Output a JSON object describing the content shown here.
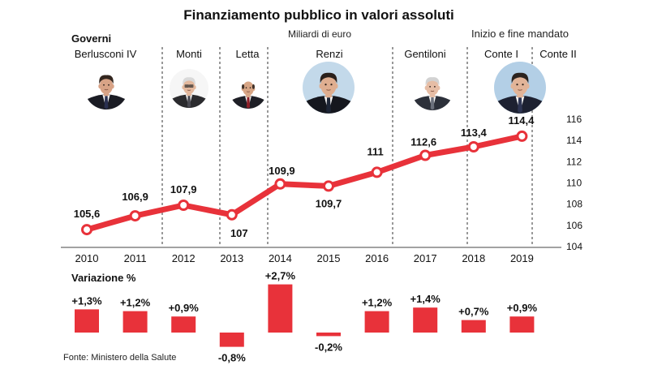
{
  "governments": {
    "label": "Governi",
    "note": "Inizio e fine mandato",
    "items": [
      {
        "name": "Berlusconi IV",
        "portrait": "person-photo-icon"
      },
      {
        "name": "Monti",
        "portrait": "person-photo-icon"
      },
      {
        "name": "Letta",
        "portrait": "person-photo-icon"
      },
      {
        "name": "Renzi",
        "portrait": "person-photo-icon"
      },
      {
        "name": "Gentiloni",
        "portrait": "person-photo-icon"
      },
      {
        "name": "Conte I",
        "portrait": "person-photo-icon"
      },
      {
        "name": "Conte II"
      }
    ]
  },
  "source": "Fonte: Ministero della Salute",
  "colors": {
    "accent": "#e8323a",
    "text": "#111111",
    "marker_fill": "#ffffff"
  },
  "chart_data": [
    {
      "type": "line",
      "title": "Finanziamento pubblico in valori assoluti",
      "unit": "Miliardi di euro",
      "x": [
        2010,
        2011,
        2012,
        2013,
        2014,
        2015,
        2016,
        2017,
        2018,
        2019
      ],
      "values": [
        105.6,
        106.9,
        107.9,
        107,
        109.9,
        109.7,
        111,
        112.6,
        113.4,
        114.4
      ],
      "value_labels": [
        "105,6",
        "106,9",
        "107,9",
        "107",
        "109,9",
        "109,7",
        "111",
        "112,6",
        "113,4",
        "114,4"
      ],
      "ylim": [
        104,
        116
      ],
      "yticks": [
        104,
        106,
        108,
        110,
        112,
        114,
        116
      ],
      "grid": false
    },
    {
      "type": "bar",
      "title": "Variazione %",
      "categories": [
        2010,
        2011,
        2012,
        2013,
        2014,
        2015,
        2016,
        2017,
        2018,
        2019
      ],
      "values": [
        1.3,
        1.2,
        0.9,
        -0.8,
        2.7,
        -0.2,
        1.2,
        1.4,
        0.7,
        0.9
      ],
      "value_labels": [
        "+1,3%",
        "+1,2%",
        "+0,9%",
        "-0,8%",
        "+2,7%",
        "-0,2%",
        "+1,2%",
        "+1,4%",
        "+0,7%",
        "+0,9%"
      ]
    }
  ]
}
